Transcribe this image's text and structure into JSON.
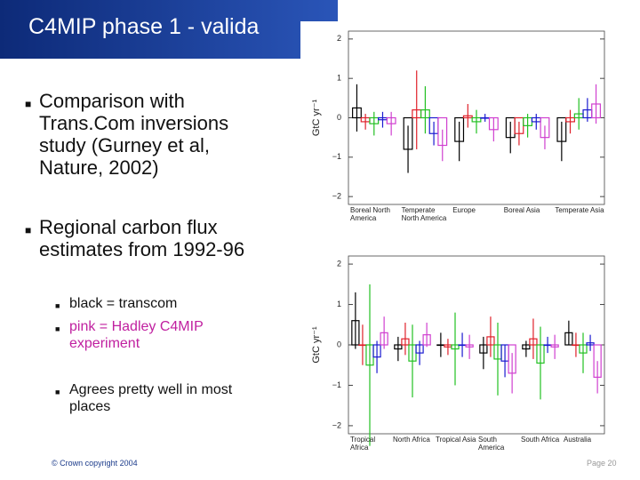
{
  "header": {
    "title": "C4MIP phase 1 - valida"
  },
  "bullets": [
    "Comparison with Trans.Com inversions study (Gurney et al, Nature, 2002)",
    "Regional carbon flux estimates from 1992-96"
  ],
  "sub_bullets": [
    "black = transcom",
    "pink = Hadley C4MIP experiment",
    "Agrees pretty well in most places"
  ],
  "footer": {
    "copyright": "© Crown copyright 2004",
    "page": "Page 20"
  },
  "chart_data": [
    {
      "type": "bar",
      "ylabel": "GtC yr⁻¹",
      "categories": [
        "Boreal North America",
        "Temperate North America",
        "Europe",
        "Boreal Asia",
        "Temperate Asia"
      ],
      "series": [
        {
          "color": "#000000",
          "values": [
            0.25,
            -0.8,
            -0.6,
            -0.5,
            -0.6
          ],
          "errors": [
            0.6,
            0.6,
            0.5,
            0.4,
            0.5
          ]
        },
        {
          "color": "#e0202a",
          "values": [
            -0.1,
            0.2,
            0.05,
            -0.4,
            -0.1
          ],
          "errors": [
            0.2,
            1.0,
            0.3,
            0.3,
            0.3
          ]
        },
        {
          "color": "#22c022",
          "values": [
            -0.15,
            0.2,
            -0.1,
            -0.2,
            0.1
          ],
          "errors": [
            0.3,
            0.6,
            0.3,
            0.3,
            0.4
          ]
        },
        {
          "color": "#1a1ad0",
          "values": [
            -0.05,
            -0.4,
            0.0,
            -0.1,
            0.2
          ],
          "errors": [
            0.2,
            0.3,
            0.1,
            0.2,
            0.3
          ]
        },
        {
          "color": "#d040d0",
          "values": [
            -0.15,
            -0.7,
            -0.3,
            -0.5,
            0.35
          ],
          "errors": [
            0.3,
            0.4,
            0.3,
            0.3,
            0.5
          ]
        }
      ],
      "ylim": [
        -2.2,
        2.2
      ],
      "yticks": [
        {
          "value": -2,
          "label": "−2"
        },
        {
          "value": -1,
          "label": "−1"
        },
        0,
        1,
        2
      ]
    },
    {
      "type": "bar",
      "ylabel": "GtC yr⁻¹",
      "categories": [
        "Tropical Africa",
        "North Africa",
        "Tropical Asia",
        "South America",
        "South Africa",
        "Australia"
      ],
      "series": [
        {
          "color": "#000000",
          "values": [
            0.6,
            -0.1,
            0.0,
            -0.2,
            -0.1,
            0.3
          ],
          "errors": [
            0.7,
            0.3,
            0.3,
            0.4,
            0.2,
            0.3
          ]
        },
        {
          "color": "#e0202a",
          "values": [
            0.0,
            0.15,
            -0.05,
            0.2,
            0.15,
            0.0
          ],
          "errors": [
            0.5,
            0.4,
            0.2,
            0.5,
            0.5,
            0.3
          ]
        },
        {
          "color": "#22c022",
          "values": [
            -0.5,
            -0.4,
            -0.1,
            -0.35,
            -0.45,
            -0.2
          ],
          "errors": [
            2.0,
            0.9,
            0.9,
            0.9,
            0.9,
            0.5
          ]
        },
        {
          "color": "#1a1ad0",
          "values": [
            -0.3,
            -0.2,
            0.0,
            -0.4,
            0.0,
            0.05
          ],
          "errors": [
            0.4,
            0.3,
            0.3,
            0.4,
            0.2,
            0.2
          ]
        },
        {
          "color": "#d040d0",
          "values": [
            0.3,
            0.25,
            -0.05,
            -0.7,
            -0.05,
            -0.8
          ],
          "errors": [
            0.4,
            0.3,
            0.3,
            0.5,
            0.3,
            0.4
          ]
        }
      ],
      "ylim": [
        -2.2,
        2.2
      ],
      "yticks": [
        {
          "value": -2,
          "label": "−2"
        },
        {
          "value": -1,
          "label": "−1"
        },
        0,
        1,
        2
      ]
    }
  ]
}
